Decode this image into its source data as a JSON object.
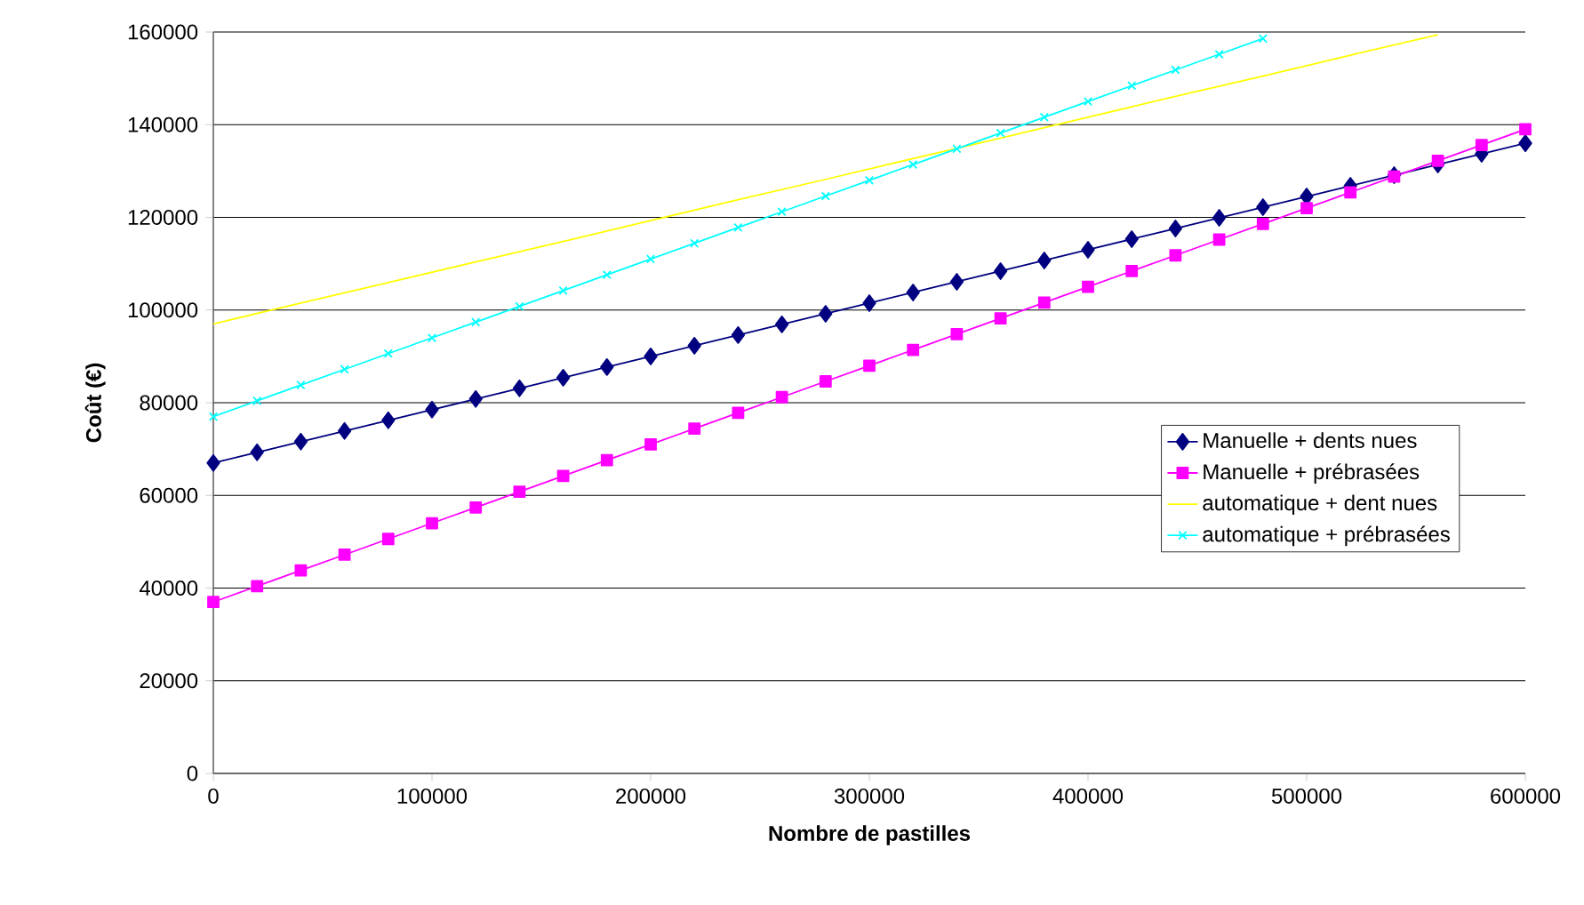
{
  "chart_data": {
    "type": "line",
    "xlabel": "Nombre de pastilles",
    "ylabel": "Coût (€)",
    "xlim": [
      0,
      600000
    ],
    "ylim": [
      0,
      160000
    ],
    "xticks": [
      0,
      100000,
      200000,
      300000,
      400000,
      500000,
      600000
    ],
    "yticks": [
      0,
      20000,
      40000,
      60000,
      80000,
      100000,
      120000,
      140000,
      160000
    ],
    "grid": "y",
    "legend": "right",
    "line_style": "solid",
    "series": [
      {
        "name": "Manuelle + dents nues",
        "color": "#000080",
        "marker": "diamond",
        "x": [
          0,
          20000,
          40000,
          60000,
          80000,
          100000,
          120000,
          140000,
          160000,
          180000,
          200000,
          220000,
          240000,
          260000,
          280000,
          300000,
          320000,
          340000,
          360000,
          380000,
          400000,
          420000,
          440000,
          460000,
          480000,
          500000,
          520000,
          540000,
          560000,
          580000,
          600000
        ],
        "values": [
          67000,
          69300,
          71600,
          73900,
          76200,
          78500,
          80800,
          83100,
          85400,
          87700,
          90000,
          92300,
          94600,
          96900,
          99200,
          101500,
          103800,
          106100,
          108400,
          110700,
          113000,
          115300,
          117600,
          119900,
          122200,
          124500,
          126800,
          129100,
          131400,
          133700,
          136000
        ]
      },
      {
        "name": "Manuelle + prébrasées",
        "color": "#ff00ff",
        "marker": "square",
        "x": [
          0,
          20000,
          40000,
          60000,
          80000,
          100000,
          120000,
          140000,
          160000,
          180000,
          200000,
          220000,
          240000,
          260000,
          280000,
          300000,
          320000,
          340000,
          360000,
          380000,
          400000,
          420000,
          440000,
          460000,
          480000,
          500000,
          520000,
          540000,
          560000,
          580000,
          600000
        ],
        "values": [
          37000,
          40400,
          43800,
          47200,
          50600,
          54000,
          57400,
          60800,
          64200,
          67600,
          71000,
          74400,
          77800,
          81200,
          84600,
          88000,
          91400,
          94800,
          98200,
          101600,
          105000,
          108400,
          111800,
          115200,
          118600,
          122000,
          125400,
          128800,
          132200,
          135600,
          139000
        ]
      },
      {
        "name": "automatique + dent nues",
        "color": "#ffff00",
        "marker": "none",
        "x": [
          0,
          40000,
          80000,
          120000,
          160000,
          200000,
          240000,
          280000,
          320000,
          360000,
          400000,
          440000,
          480000,
          520000,
          560000
        ],
        "values": [
          97000,
          101500,
          105900,
          110400,
          114800,
          119300,
          123800,
          128200,
          132700,
          137100,
          141600,
          146100,
          150500,
          155000,
          159400
        ]
      },
      {
        "name": "automatique + prébrasées",
        "color": "#00ffff",
        "marker": "cross",
        "x": [
          0,
          20000,
          40000,
          60000,
          80000,
          100000,
          120000,
          140000,
          160000,
          180000,
          200000,
          220000,
          240000,
          260000,
          280000,
          300000,
          320000,
          340000,
          360000,
          380000,
          400000,
          420000,
          440000,
          460000,
          480000
        ],
        "values": [
          77000,
          80400,
          83800,
          87200,
          90600,
          94000,
          97400,
          100800,
          104200,
          107600,
          111000,
          114400,
          117800,
          121200,
          124600,
          128000,
          131400,
          134800,
          138200,
          141600,
          145000,
          148400,
          151800,
          155200,
          158600
        ]
      }
    ]
  }
}
